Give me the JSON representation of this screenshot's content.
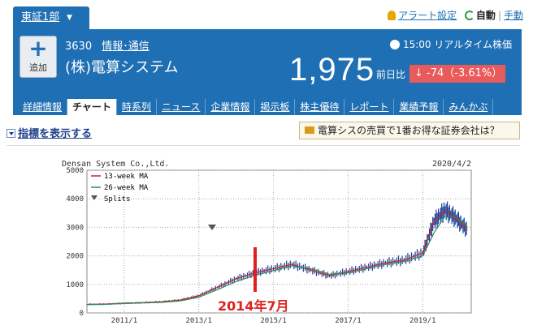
{
  "topbar": {
    "market_label": "東証1部",
    "alert_label": "アラート設定",
    "auto_label": "自動",
    "separator": "|",
    "manual_label": "手動"
  },
  "header": {
    "add_label": "追加",
    "code": "3630",
    "category": "情報･通信",
    "company_name": "(株)電算システム",
    "realtime_label": "15:00 リアルタイム株価",
    "price": "1,975",
    "change_label": "前日比",
    "change_value": "-74（-3.61%）"
  },
  "nav": {
    "tabs": [
      "詳細情報",
      "チャート",
      "時系列",
      "ニュース",
      "企業情報",
      "掲示板",
      "株主優待",
      "レポート",
      "業績予報",
      "みんかぶ"
    ],
    "active": "チャート"
  },
  "indicator_label": "指標を表示する",
  "promo_label": "電算シスの売買で1番お得な証券会社は？",
  "chart_data": {
    "type": "line",
    "title": "Densan System Co.,Ltd.",
    "date_label": "2020/4/2",
    "ylim": [
      0,
      5000
    ],
    "yticks": [
      0,
      1000,
      2000,
      3000,
      4000,
      5000
    ],
    "xticks": [
      "2011/1",
      "2013/1",
      "2015/1",
      "2017/1",
      "2019/1"
    ],
    "legend": [
      "13-week MA",
      "26-week MA",
      "Splits"
    ],
    "series": [
      {
        "name": "13-week MA",
        "color": "#cc2222",
        "x": [
          2010.0,
          2010.5,
          2011.0,
          2011.5,
          2012.0,
          2012.5,
          2013.0,
          2013.5,
          2014.0,
          2014.5,
          2015.0,
          2015.5,
          2016.0,
          2016.5,
          2017.0,
          2017.5,
          2018.0,
          2018.5,
          2019.0,
          2019.3,
          2019.6,
          2019.9,
          2020.2
        ],
        "values": [
          300,
          310,
          340,
          360,
          390,
          450,
          600,
          900,
          1200,
          1400,
          1550,
          1700,
          1500,
          1300,
          1450,
          1600,
          1750,
          1850,
          2100,
          3200,
          3600,
          3300,
          2900
        ]
      },
      {
        "name": "26-week MA",
        "color": "#2e8b57",
        "x": [
          2010.0,
          2010.5,
          2011.0,
          2011.5,
          2012.0,
          2012.5,
          2013.0,
          2013.5,
          2014.0,
          2014.5,
          2015.0,
          2015.5,
          2016.0,
          2016.5,
          2017.0,
          2017.5,
          2018.0,
          2018.5,
          2019.0,
          2019.3,
          2019.6,
          2019.9,
          2020.2
        ],
        "values": [
          290,
          300,
          330,
          350,
          370,
          420,
          550,
          820,
          1100,
          1320,
          1480,
          1650,
          1550,
          1350,
          1400,
          1550,
          1700,
          1800,
          2000,
          2800,
          3400,
          3350,
          3000
        ]
      }
    ],
    "annotation": "2014年7月"
  }
}
